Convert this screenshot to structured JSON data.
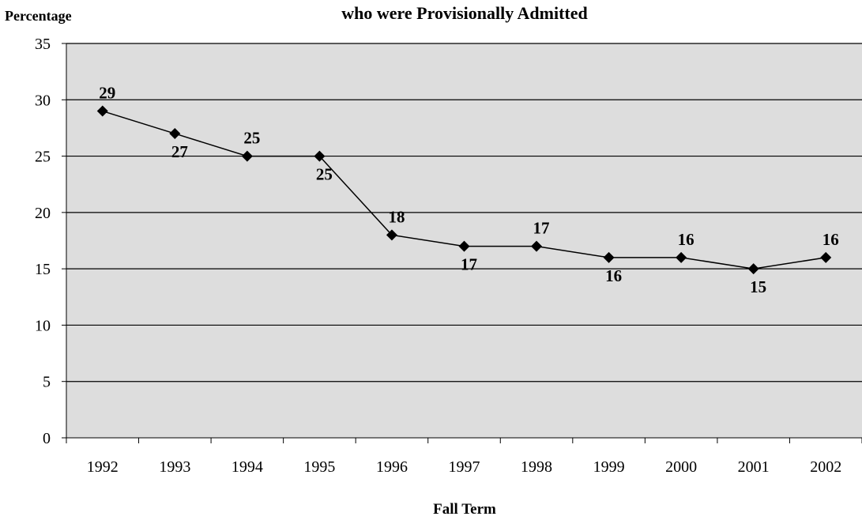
{
  "chart_data": {
    "type": "line",
    "title": "who were Provisionally Admitted",
    "y_label": "Percentage",
    "x_label": "Fall Term",
    "categories": [
      "1992",
      "1993",
      "1994",
      "1995",
      "1996",
      "1997",
      "1998",
      "1999",
      "2000",
      "2001",
      "2002"
    ],
    "series": [
      {
        "name": "Percentage",
        "color": "#000000",
        "values": [
          29,
          27,
          25,
          25,
          18,
          17,
          17,
          16,
          16,
          15,
          16
        ]
      }
    ],
    "ylim": [
      0,
      35
    ],
    "yticks": [
      0,
      5,
      10,
      15,
      20,
      25,
      30,
      35
    ],
    "grid": true
  }
}
